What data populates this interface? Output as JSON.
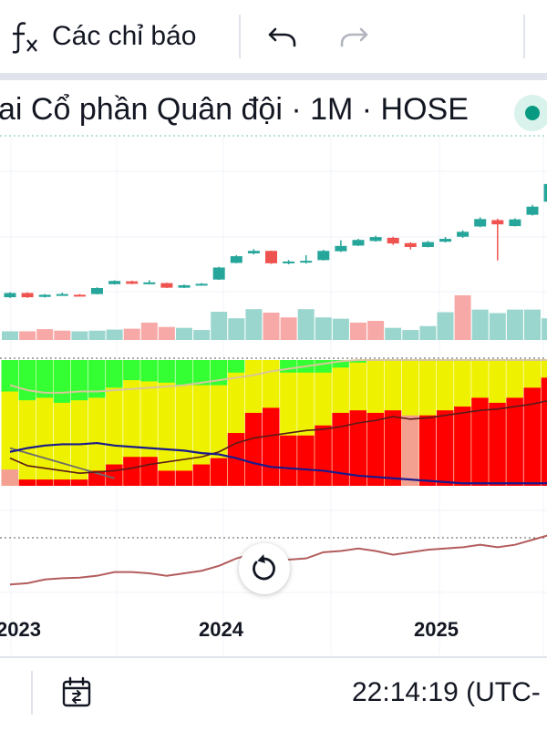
{
  "toolbar": {
    "indicators_label": "Các chỉ báo",
    "fx_icon": "function-icon",
    "undo_icon": "undo-icon",
    "redo_icon": "redo-icon"
  },
  "legend": {
    "title": "ai Cổ phần Quân đội · 1M · HOSE",
    "status_color": "#089981"
  },
  "time_axis": {
    "labels": [
      "2023",
      "2024",
      "2025"
    ]
  },
  "footer": {
    "clock": "22:14:19 (UTC-",
    "date_range_icon": "calendar-range-icon"
  },
  "colors": {
    "up": "#26a69a",
    "down": "#ef5350",
    "volume_up": "#9ad6ce",
    "volume_down": "#f7a9a7",
    "panel_red": "#ff0000",
    "panel_yellow": "#eef200",
    "panel_green": "#33ff33",
    "line_brown": "#b35c5c"
  },
  "chart_data": {
    "type": "candlestick",
    "interval": "1M",
    "x_axis_labels": [
      "2023",
      "2024",
      "2025"
    ],
    "candles": [
      {
        "o": 10.0,
        "c": 11.2,
        "h": 11.4,
        "l": 9.8
      },
      {
        "o": 11.2,
        "c": 10.0,
        "h": 11.4,
        "l": 9.8
      },
      {
        "o": 10.1,
        "c": 10.7,
        "h": 10.9,
        "l": 9.9
      },
      {
        "o": 10.6,
        "c": 10.9,
        "h": 11.3,
        "l": 10.5
      },
      {
        "o": 10.7,
        "c": 10.6,
        "h": 10.9,
        "l": 10.5
      },
      {
        "o": 10.9,
        "c": 12.6,
        "h": 12.8,
        "l": 10.8
      },
      {
        "o": 13.7,
        "c": 14.6,
        "h": 14.8,
        "l": 13.6
      },
      {
        "o": 14.5,
        "c": 13.8,
        "h": 14.7,
        "l": 13.7
      },
      {
        "o": 14.2,
        "c": 14.2,
        "h": 14.8,
        "l": 13.7
      },
      {
        "o": 14.0,
        "c": 12.7,
        "h": 14.1,
        "l": 12.6
      },
      {
        "o": 12.7,
        "c": 13.4,
        "h": 13.6,
        "l": 12.6
      },
      {
        "o": 13.4,
        "c": 13.8,
        "h": 14.0,
        "l": 13.3
      },
      {
        "o": 15.0,
        "c": 18.4,
        "h": 18.6,
        "l": 14.9
      },
      {
        "o": 19.7,
        "c": 21.6,
        "h": 21.9,
        "l": 19.6
      },
      {
        "o": 22.4,
        "c": 23.1,
        "h": 23.6,
        "l": 22.1
      },
      {
        "o": 23.1,
        "c": 19.6,
        "h": 23.2,
        "l": 19.4
      },
      {
        "o": 19.9,
        "c": 20.1,
        "h": 20.5,
        "l": 19.3
      },
      {
        "o": 20.2,
        "c": 20.3,
        "h": 21.9,
        "l": 19.5
      },
      {
        "o": 20.5,
        "c": 23.1,
        "h": 23.4,
        "l": 20.4
      },
      {
        "o": 23.0,
        "c": 24.5,
        "h": 26.1,
        "l": 22.8
      },
      {
        "o": 24.6,
        "c": 26.2,
        "h": 26.5,
        "l": 24.5
      },
      {
        "o": 25.9,
        "c": 27.0,
        "h": 27.4,
        "l": 25.7
      },
      {
        "o": 26.8,
        "c": 25.2,
        "h": 27.1,
        "l": 24.8
      },
      {
        "o": 25.3,
        "c": 24.2,
        "h": 25.5,
        "l": 23.5
      },
      {
        "o": 24.2,
        "c": 25.6,
        "h": 25.9,
        "l": 24.1
      },
      {
        "o": 25.7,
        "c": 26.5,
        "h": 27.0,
        "l": 25.5
      },
      {
        "o": 27.1,
        "c": 28.5,
        "h": 28.9,
        "l": 26.8
      },
      {
        "o": 30.0,
        "c": 32.1,
        "h": 32.6,
        "l": 29.8
      },
      {
        "o": 31.8,
        "c": 30.6,
        "h": 32.2,
        "l": 20.4
      },
      {
        "o": 30.1,
        "c": 32.0,
        "h": 32.3,
        "l": 30.0
      },
      {
        "o": 33.3,
        "c": 35.6,
        "h": 36.1,
        "l": 33.1
      },
      {
        "o": 37.0,
        "c": 42.0,
        "h": 43.0,
        "l": 36.8
      }
    ],
    "volume": [
      {
        "v": 4.0,
        "up": true
      },
      {
        "v": 4.0,
        "up": false
      },
      {
        "v": 5.0,
        "up": false
      },
      {
        "v": 4.3,
        "up": false
      },
      {
        "v": 4.0,
        "up": true
      },
      {
        "v": 4.3,
        "up": true
      },
      {
        "v": 4.8,
        "up": true
      },
      {
        "v": 5.2,
        "up": false
      },
      {
        "v": 8.0,
        "up": false
      },
      {
        "v": 6.0,
        "up": false
      },
      {
        "v": 5.6,
        "up": true
      },
      {
        "v": 4.6,
        "up": true
      },
      {
        "v": 13.0,
        "up": true
      },
      {
        "v": 10.0,
        "up": true
      },
      {
        "v": 14.2,
        "up": true
      },
      {
        "v": 12.6,
        "up": false
      },
      {
        "v": 10.4,
        "up": false
      },
      {
        "v": 14.2,
        "up": true
      },
      {
        "v": 10.4,
        "up": true
      },
      {
        "v": 9.8,
        "up": true
      },
      {
        "v": 8.0,
        "up": false
      },
      {
        "v": 8.8,
        "up": false
      },
      {
        "v": 5.6,
        "up": true
      },
      {
        "v": 4.6,
        "up": true
      },
      {
        "v": 6.4,
        "up": true
      },
      {
        "v": 12.8,
        "up": true
      },
      {
        "v": 20.6,
        "up": false
      },
      {
        "v": 14.0,
        "up": true
      },
      {
        "v": 12.4,
        "up": true
      },
      {
        "v": 14.0,
        "up": true
      },
      {
        "v": 14.0,
        "up": true
      },
      {
        "v": 10.0,
        "up": true
      }
    ],
    "indicator_panel": {
      "bars": [
        {
          "red": 0.13,
          "yellow": 0.15,
          "green": 0.25,
          "pink": true
        },
        {
          "red": 0.05,
          "yellow": 0.14,
          "green": 0.32
        },
        {
          "red": 0.05,
          "yellow": 0.14,
          "green": 0.3
        },
        {
          "red": 0.05,
          "yellow": 0.14,
          "green": 0.34
        },
        {
          "red": 0.05,
          "yellow": 0.15,
          "green": 0.32
        },
        {
          "red": 0.12,
          "yellow": 0.25,
          "green": 0.3
        },
        {
          "red": 0.17,
          "yellow": 0.2,
          "green": 0.22
        },
        {
          "red": 0.23,
          "yellow": 0.2,
          "green": 0.16
        },
        {
          "red": 0.23,
          "yellow": 0.24,
          "green": 0.17
        },
        {
          "red": 0.12,
          "yellow": 0.3,
          "green": 0.18
        },
        {
          "red": 0.12,
          "yellow": 0.25,
          "green": 0.2
        },
        {
          "red": 0.17,
          "yellow": 0.2,
          "green": 0.2
        },
        {
          "red": 0.22,
          "yellow": 0.22,
          "green": 0.2
        },
        {
          "red": 0.42,
          "yellow": 0.35,
          "green": 0.1
        },
        {
          "red": 0.58,
          "yellow": 0.3,
          "green": 0.0
        },
        {
          "red": 0.62,
          "yellow": 0.26,
          "green": 0.0
        },
        {
          "red": 0.4,
          "yellow": 0.4,
          "green": 0.1
        },
        {
          "red": 0.4,
          "yellow": 0.42,
          "green": 0.1
        },
        {
          "red": 0.48,
          "yellow": 0.4,
          "green": 0.1
        },
        {
          "red": 0.58,
          "yellow": 0.32,
          "green": 0.06
        },
        {
          "red": 0.6,
          "yellow": 0.32,
          "green": 0.02
        },
        {
          "red": 0.58,
          "yellow": 0.34,
          "green": 0.0
        },
        {
          "red": 0.6,
          "yellow": 0.32,
          "green": 0.0
        },
        {
          "red": 0.56,
          "yellow": 0.36,
          "green": 0.0,
          "pink": true
        },
        {
          "red": 0.56,
          "yellow": 0.36,
          "green": 0.0
        },
        {
          "red": 0.6,
          "yellow": 0.32,
          "green": 0.0
        },
        {
          "red": 0.63,
          "yellow": 0.3,
          "green": 0.0
        },
        {
          "red": 0.7,
          "yellow": 0.24,
          "green": 0.0
        },
        {
          "red": 0.66,
          "yellow": 0.28,
          "green": 0.0
        },
        {
          "red": 0.7,
          "yellow": 0.24,
          "green": 0.0
        },
        {
          "red": 0.78,
          "yellow": 0.16,
          "green": 0.0
        },
        {
          "red": 0.86,
          "yellow": 0.1,
          "green": 0.0
        }
      ],
      "line_black": [
        0.22,
        0.16,
        0.14,
        0.12,
        0.1,
        0.11,
        0.12,
        0.14,
        0.17,
        0.19,
        0.21,
        0.23,
        0.27,
        0.34,
        0.38,
        0.4,
        0.42,
        0.44,
        0.45,
        0.47,
        0.5,
        0.52,
        0.55,
        0.53,
        0.54,
        0.56,
        0.58,
        0.6,
        0.61,
        0.63,
        0.65,
        0.68
      ],
      "line_navy": [
        0.27,
        0.3,
        0.32,
        0.33,
        0.33,
        0.34,
        0.32,
        0.31,
        0.3,
        0.29,
        0.28,
        0.26,
        0.25,
        0.22,
        0.18,
        0.15,
        0.14,
        0.13,
        0.12,
        0.1,
        0.08,
        0.07,
        0.06,
        0.05,
        0.04,
        0.03,
        0.02,
        0.02,
        0.02,
        0.02,
        0.02,
        0.02
      ],
      "line_tan": [
        0.8,
        0.76,
        0.74,
        0.74,
        0.75,
        0.75,
        0.76,
        0.77,
        0.78,
        0.79,
        0.8,
        0.82,
        0.84,
        0.86,
        0.88,
        0.91,
        0.93,
        0.95,
        0.97,
        0.99,
        1.0,
        1.0,
        1.0,
        1.0,
        1.0,
        1.0,
        1.0,
        1.0,
        1.0,
        1.0,
        1.0,
        1.0
      ],
      "line_gray": [
        0.3,
        0.26,
        0.22,
        0.18,
        0.14,
        0.1,
        0.06
      ]
    },
    "lower_line": [
      0.1,
      0.12,
      0.18,
      0.2,
      0.21,
      0.24,
      0.3,
      0.3,
      0.28,
      0.24,
      0.28,
      0.32,
      0.4,
      0.52,
      0.6,
      0.62,
      0.5,
      0.52,
      0.62,
      0.64,
      0.68,
      0.64,
      0.58,
      0.62,
      0.66,
      0.68,
      0.7,
      0.74,
      0.7,
      0.74,
      0.82,
      0.9
    ]
  }
}
